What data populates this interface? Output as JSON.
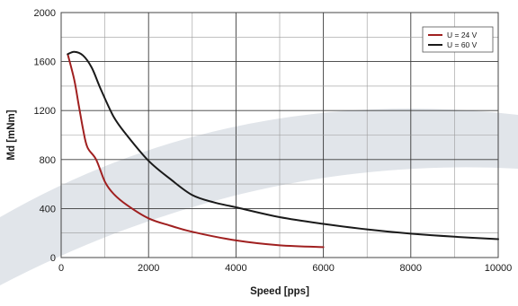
{
  "chart_data": {
    "type": "line",
    "title": "",
    "xlabel": "Speed [pps]",
    "ylabel": "Md [mNm]",
    "xlim": [
      0,
      10000
    ],
    "ylim": [
      0,
      2000
    ],
    "x_ticks": [
      0,
      2000,
      4000,
      6000,
      8000,
      10000
    ],
    "y_ticks": [
      0,
      400,
      800,
      1200,
      1600,
      2000
    ],
    "x_tick_labels": [
      "0",
      "2000",
      "4000",
      "6000",
      "8000",
      "10000"
    ],
    "y_tick_labels": [
      "0",
      "400",
      "800",
      "1200",
      "1600",
      "2000"
    ],
    "grid": true,
    "legend_position": "top-right",
    "series": [
      {
        "name": "U = 24 V",
        "color": "#a02020",
        "x": [
          150,
          300,
          400,
          500,
          600,
          800,
          1000,
          1200,
          1500,
          2000,
          2500,
          3000,
          4000,
          5000,
          6000
        ],
        "y": [
          1660,
          1450,
          1250,
          1050,
          900,
          800,
          620,
          520,
          430,
          320,
          260,
          210,
          140,
          100,
          85
        ]
      },
      {
        "name": "U = 60 V",
        "color": "#1a1a1a",
        "x": [
          150,
          300,
          500,
          700,
          900,
          1200,
          1500,
          2000,
          2500,
          3000,
          3500,
          4000,
          5000,
          6000,
          7000,
          8000,
          9000,
          10000
        ],
        "y": [
          1660,
          1680,
          1650,
          1550,
          1380,
          1150,
          1000,
          790,
          640,
          510,
          450,
          410,
          330,
          275,
          230,
          195,
          170,
          150
        ]
      }
    ]
  }
}
